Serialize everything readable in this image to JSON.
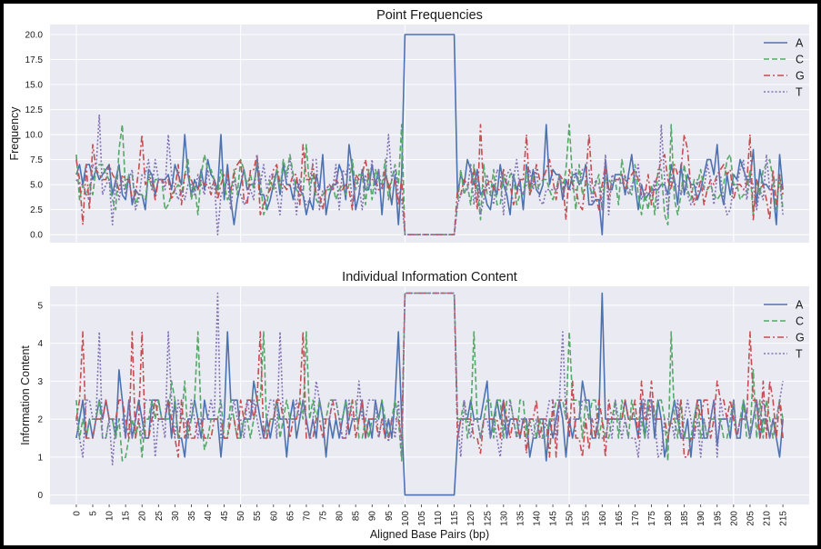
{
  "figure": {
    "background": "#ffffff",
    "frame": "#000000"
  },
  "style": {
    "axes_bg": "#eaeaf2",
    "grid": "#ffffff",
    "colors": {
      "A": "#4c72b0",
      "C": "#55a868",
      "G": "#c44e52",
      "T": "#8172b2"
    }
  },
  "chart_data": [
    {
      "type": "line",
      "title": "Point Frequencies",
      "xlabel": "",
      "ylabel": "Frequency",
      "xlim": [
        -8,
        223
      ],
      "ylim": [
        -0.8,
        21
      ],
      "yticks": [
        "0.0",
        "2.5",
        "5.0",
        "7.5",
        "10.0",
        "12.5",
        "15.0",
        "17.5",
        "20.0"
      ],
      "grid": true,
      "legend": "top-right",
      "x": {
        "start": 0,
        "end": 215,
        "step": 1
      },
      "series": [
        {
          "name": "A",
          "dash": "solid",
          "base": 5,
          "amp": 2.6,
          "min": 0,
          "max": 11,
          "gaps": [
            [
              100,
              115,
              20
            ]
          ],
          "peaks": [
            [
              10,
              7
            ],
            [
              33,
              10
            ],
            [
              44,
              10
            ],
            [
              48,
              1
            ],
            [
              83,
              9
            ],
            [
              98,
              1
            ],
            [
              143,
              11
            ],
            [
              160,
              0
            ],
            [
              195,
              9
            ],
            [
              214,
              8
            ]
          ]
        },
        {
          "name": "C",
          "dash": "dashed",
          "base": 5,
          "amp": 2.6,
          "min": 0,
          "max": 11,
          "gaps": [
            [
              100,
              115,
              0
            ]
          ],
          "peaks": [
            [
              0,
              8
            ],
            [
              14,
              11
            ],
            [
              37,
              2
            ],
            [
              39,
              8
            ],
            [
              57,
              2
            ],
            [
              70,
              9
            ],
            [
              99,
              11
            ],
            [
              150,
              11
            ],
            [
              172,
              2
            ],
            [
              180,
              1
            ],
            [
              181,
              11
            ],
            [
              206,
              2
            ]
          ]
        },
        {
          "name": "G",
          "dash": "dashdot",
          "base": 5,
          "amp": 2.6,
          "min": 0,
          "max": 11,
          "gaps": [
            [
              100,
              115,
              0
            ]
          ],
          "peaks": [
            [
              2,
              1
            ],
            [
              5,
              9
            ],
            [
              20,
              10
            ],
            [
              56,
              2
            ],
            [
              69,
              9
            ],
            [
              123,
              11
            ],
            [
              137,
              10
            ],
            [
              156,
              10
            ],
            [
              185,
              10
            ],
            [
              205,
              10
            ],
            [
              213,
              3
            ]
          ]
        },
        {
          "name": "T",
          "dash": "dotted",
          "base": 5,
          "amp": 2.6,
          "min": 0,
          "max": 12,
          "gaps": [
            [
              100,
              115,
              0
            ]
          ],
          "peaks": [
            [
              7,
              12
            ],
            [
              11,
              1
            ],
            [
              28,
              10
            ],
            [
              43,
              0
            ],
            [
              62,
              2
            ],
            [
              95,
              10
            ],
            [
              178,
              11
            ],
            [
              210,
              8
            ]
          ]
        }
      ]
    },
    {
      "type": "line",
      "title": "Individual Information Content",
      "xlabel": "Aligned Base Pairs (bp)",
      "ylabel": "Information Content",
      "xlim": [
        -8,
        223
      ],
      "ylim": [
        -0.25,
        5.5
      ],
      "yticks": [
        "0",
        "1",
        "2",
        "3",
        "4",
        "5"
      ],
      "xticks": [
        "0",
        "5",
        "10",
        "15",
        "20",
        "25",
        "30",
        "35",
        "40",
        "45",
        "50",
        "55",
        "60",
        "65",
        "70",
        "75",
        "80",
        "85",
        "90",
        "95",
        "100",
        "105",
        "110",
        "115",
        "120",
        "125",
        "130",
        "135",
        "140",
        "145",
        "150",
        "155",
        "160",
        "165",
        "170",
        "175",
        "180",
        "185",
        "190",
        "195",
        "200",
        "205",
        "210",
        "215"
      ],
      "grid": true,
      "legend": "top-right",
      "x": {
        "start": 0,
        "end": 215,
        "step": 1
      },
      "series": [
        {
          "name": "A",
          "dash": "solid",
          "base": 2.0,
          "amp": 0.75,
          "min": 0,
          "max": 5.32,
          "gaps": [
            [
              100,
              115,
              0
            ]
          ],
          "peaks": [
            [
              13,
              3.3
            ],
            [
              33,
              1
            ],
            [
              44,
              1
            ],
            [
              46,
              4.3
            ],
            [
              83,
              1.6
            ],
            [
              98,
              4.3
            ],
            [
              143,
              0.9
            ],
            [
              160,
              5.32
            ],
            [
              195,
              1.3
            ]
          ]
        },
        {
          "name": "C",
          "dash": "dashed",
          "base": 2.0,
          "amp": 0.75,
          "min": 0,
          "max": 5.32,
          "gaps": [
            [
              100,
              115,
              5.32
            ]
          ],
          "peaks": [
            [
              14,
              0.9
            ],
            [
              37,
              4.3
            ],
            [
              39,
              1.2
            ],
            [
              57,
              4.3
            ],
            [
              70,
              4.3
            ],
            [
              99,
              0.9
            ],
            [
              121,
              4.3
            ],
            [
              150,
              4.3
            ],
            [
              181,
              4.3
            ],
            [
              180,
              0.9
            ],
            [
              206,
              3.3
            ]
          ]
        },
        {
          "name": "G",
          "dash": "dashdot",
          "base": 2.0,
          "amp": 0.75,
          "min": 0,
          "max": 5.32,
          "gaps": [
            [
              100,
              115,
              5.32
            ]
          ],
          "peaks": [
            [
              2,
              4.3
            ],
            [
              17,
              4.3
            ],
            [
              20,
              4.3
            ],
            [
              56,
              4.3
            ],
            [
              69,
              4.3
            ],
            [
              123,
              1.1
            ],
            [
              137,
              1.1
            ],
            [
              156,
              1.2
            ],
            [
              185,
              1.0
            ],
            [
              205,
              4.3
            ]
          ]
        },
        {
          "name": "T",
          "dash": "dotted",
          "base": 2.0,
          "amp": 0.75,
          "min": 0,
          "max": 5.32,
          "gaps": [
            [
              100,
              115,
              5.32
            ]
          ],
          "peaks": [
            [
              7,
              4.3
            ],
            [
              11,
              0.8
            ],
            [
              28,
              4.3
            ],
            [
              43,
              5.32
            ],
            [
              62,
              4.3
            ],
            [
              95,
              1.4
            ],
            [
              148,
              4.3
            ],
            [
              178,
              1.1
            ]
          ]
        }
      ]
    }
  ]
}
